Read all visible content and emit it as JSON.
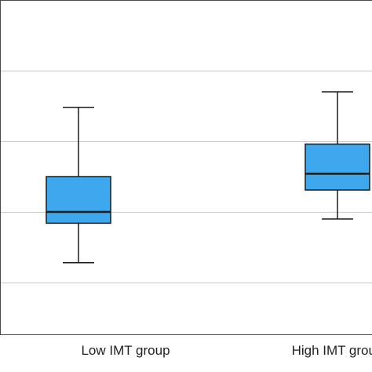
{
  "chart_data": {
    "type": "boxplot",
    "title": "",
    "xlabel": "",
    "ylabel": "",
    "categories": [
      "Low IMT group",
      "High IMT group"
    ],
    "ylim": [
      0,
      5
    ],
    "gridlines": [
      1,
      2,
      3,
      4
    ],
    "grid": true,
    "legend": "none",
    "boxes": [
      {
        "category": "Low IMT group",
        "whisker_low": 1.28,
        "q1": 1.84,
        "median": 2.0,
        "q3": 2.5,
        "whisker_high": 3.48
      },
      {
        "category": "High IMT group",
        "whisker_low": 1.9,
        "q1": 2.31,
        "median": 2.54,
        "q3": 2.96,
        "whisker_high": 3.7
      }
    ],
    "colors": {
      "box_fill": "#3ea8ee",
      "stroke": "#1a1a1a",
      "grid": "#c8c8c8"
    }
  }
}
